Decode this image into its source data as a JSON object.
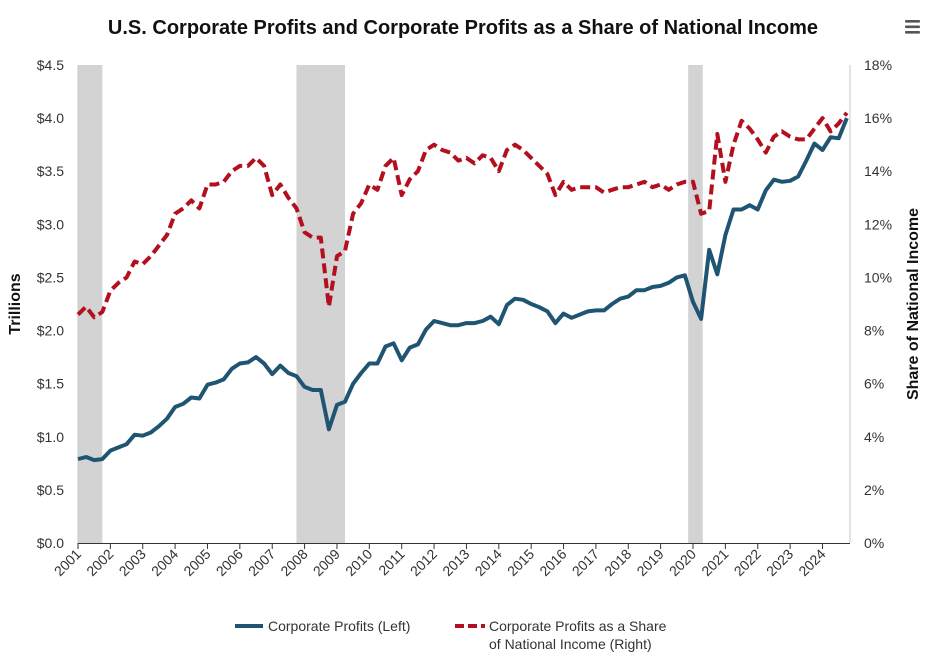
{
  "chart_data": {
    "type": "line",
    "title": "U.S. Corporate Profits and Corporate Profits as a Share of National Income",
    "ylabel_left": "Trillions",
    "ylabel_right": "Share of National Income",
    "ylim_left": [
      0,
      4.5
    ],
    "ylim_right": [
      0,
      18
    ],
    "y_ticks_left": [
      "$0.0",
      "$0.5",
      "$1.0",
      "$1.5",
      "$2.0",
      "$2.5",
      "$3.0",
      "$3.5",
      "$4.0",
      "$4.5"
    ],
    "y_ticks_right": [
      "0%",
      "2%",
      "4%",
      "6%",
      "8%",
      "10%",
      "12%",
      "14%",
      "16%",
      "18%"
    ],
    "x_tick_labels": [
      "2001",
      "2002",
      "2003",
      "2004",
      "2005",
      "2006",
      "2007",
      "2008",
      "2009",
      "2010",
      "2011",
      "2012",
      "2013",
      "2014",
      "2015",
      "2016",
      "2017",
      "2018",
      "2019",
      "2020",
      "2021",
      "2022",
      "2023",
      "2024"
    ],
    "x_range": [
      2001.0,
      2024.85
    ],
    "recessions": [
      [
        2001.0,
        2001.75
      ],
      [
        2007.75,
        2009.25
      ],
      [
        2019.85,
        2020.3
      ]
    ],
    "legend_position": "bottom",
    "grid": false,
    "series": [
      {
        "name": "Corporate Profits (Left)",
        "axis": "left",
        "color": "#1f5572",
        "style": "solid",
        "x": [
          2001.0,
          2001.25,
          2001.5,
          2001.75,
          2002.0,
          2002.25,
          2002.5,
          2002.75,
          2003.0,
          2003.25,
          2003.5,
          2003.75,
          2004.0,
          2004.25,
          2004.5,
          2004.75,
          2005.0,
          2005.25,
          2005.5,
          2005.75,
          2006.0,
          2006.25,
          2006.5,
          2006.75,
          2007.0,
          2007.25,
          2007.5,
          2007.75,
          2008.0,
          2008.25,
          2008.5,
          2008.75,
          2009.0,
          2009.25,
          2009.5,
          2009.75,
          2010.0,
          2010.25,
          2010.5,
          2010.75,
          2011.0,
          2011.25,
          2011.5,
          2011.75,
          2012.0,
          2012.25,
          2012.5,
          2012.75,
          2013.0,
          2013.25,
          2013.5,
          2013.75,
          2014.0,
          2014.25,
          2014.5,
          2014.75,
          2015.0,
          2015.25,
          2015.5,
          2015.75,
          2016.0,
          2016.25,
          2016.5,
          2016.75,
          2017.0,
          2017.25,
          2017.5,
          2017.75,
          2018.0,
          2018.25,
          2018.5,
          2018.75,
          2019.0,
          2019.25,
          2019.5,
          2019.75,
          2020.0,
          2020.25,
          2020.5,
          2020.75,
          2021.0,
          2021.25,
          2021.5,
          2021.75,
          2022.0,
          2022.25,
          2022.5,
          2022.75,
          2023.0,
          2023.25,
          2023.5,
          2023.75,
          2024.0,
          2024.25,
          2024.5,
          2024.75
        ],
        "y": [
          0.79,
          0.81,
          0.78,
          0.79,
          0.87,
          0.9,
          0.93,
          1.02,
          1.01,
          1.04,
          1.1,
          1.17,
          1.28,
          1.31,
          1.37,
          1.36,
          1.49,
          1.51,
          1.54,
          1.64,
          1.69,
          1.7,
          1.75,
          1.69,
          1.59,
          1.67,
          1.6,
          1.57,
          1.47,
          1.44,
          1.44,
          1.07,
          1.3,
          1.33,
          1.5,
          1.6,
          1.69,
          1.69,
          1.85,
          1.88,
          1.72,
          1.84,
          1.87,
          2.01,
          2.09,
          2.07,
          2.05,
          2.05,
          2.07,
          2.07,
          2.09,
          2.13,
          2.06,
          2.24,
          2.3,
          2.29,
          2.25,
          2.22,
          2.18,
          2.07,
          2.16,
          2.12,
          2.15,
          2.18,
          2.19,
          2.19,
          2.25,
          2.3,
          2.32,
          2.38,
          2.38,
          2.41,
          2.42,
          2.45,
          2.5,
          2.52,
          2.27,
          2.11,
          2.76,
          2.53,
          2.9,
          3.14,
          3.14,
          3.18,
          3.14,
          3.32,
          3.42,
          3.4,
          3.41,
          3.45,
          3.6,
          3.76,
          3.7,
          3.82,
          3.81,
          4.0
        ]
      },
      {
        "name": "Corporate Profits as a Share of National Income (Right)",
        "axis": "right",
        "color": "#b30f1f",
        "style": "dashed",
        "x": [
          2001.0,
          2001.25,
          2001.5,
          2001.75,
          2002.0,
          2002.25,
          2002.5,
          2002.75,
          2003.0,
          2003.25,
          2003.5,
          2003.75,
          2004.0,
          2004.25,
          2004.5,
          2004.75,
          2005.0,
          2005.25,
          2005.5,
          2005.75,
          2006.0,
          2006.25,
          2006.5,
          2006.75,
          2007.0,
          2007.25,
          2007.5,
          2007.75,
          2008.0,
          2008.25,
          2008.5,
          2008.75,
          2009.0,
          2009.25,
          2009.5,
          2009.75,
          2010.0,
          2010.25,
          2010.5,
          2010.75,
          2011.0,
          2011.25,
          2011.5,
          2011.75,
          2012.0,
          2012.25,
          2012.5,
          2012.75,
          2013.0,
          2013.25,
          2013.5,
          2013.75,
          2014.0,
          2014.25,
          2014.5,
          2014.75,
          2015.0,
          2015.25,
          2015.5,
          2015.75,
          2016.0,
          2016.25,
          2016.5,
          2016.75,
          2017.0,
          2017.25,
          2017.5,
          2017.75,
          2018.0,
          2018.25,
          2018.5,
          2018.75,
          2019.0,
          2019.25,
          2019.5,
          2019.75,
          2020.0,
          2020.25,
          2020.5,
          2020.75,
          2021.0,
          2021.25,
          2021.5,
          2021.75,
          2022.0,
          2022.25,
          2022.5,
          2022.75,
          2023.0,
          2023.25,
          2023.5,
          2023.75,
          2024.0,
          2024.25,
          2024.5,
          2024.75
        ],
        "y": [
          8.6,
          8.9,
          8.5,
          8.7,
          9.5,
          9.8,
          10.0,
          10.6,
          10.5,
          10.8,
          11.2,
          11.6,
          12.4,
          12.6,
          12.9,
          12.6,
          13.5,
          13.5,
          13.6,
          14.0,
          14.2,
          14.2,
          14.5,
          14.2,
          13.1,
          13.5,
          13.0,
          12.6,
          11.7,
          11.5,
          11.5,
          8.9,
          10.8,
          11.0,
          12.4,
          12.8,
          13.5,
          13.3,
          14.2,
          14.5,
          13.1,
          13.7,
          14.0,
          14.8,
          15.0,
          14.8,
          14.7,
          14.4,
          14.5,
          14.3,
          14.6,
          14.5,
          14.0,
          14.8,
          15.0,
          14.8,
          14.5,
          14.2,
          13.9,
          13.1,
          13.6,
          13.3,
          13.4,
          13.4,
          13.4,
          13.2,
          13.3,
          13.4,
          13.4,
          13.5,
          13.6,
          13.4,
          13.5,
          13.3,
          13.5,
          13.6,
          13.6,
          12.4,
          12.5,
          15.4,
          13.6,
          15.0,
          15.9,
          15.6,
          15.2,
          14.7,
          15.3,
          15.5,
          15.3,
          15.2,
          15.2,
          15.6,
          16.0,
          15.5,
          15.8,
          16.2
        ]
      }
    ]
  },
  "legend": {
    "profits_label": "Corporate Profits (Left)",
    "share_label_line1": "Corporate Profits as a Share",
    "share_label_line2": "of National Income (Right)"
  },
  "menu": {
    "icon": "hamburger-menu-icon"
  }
}
